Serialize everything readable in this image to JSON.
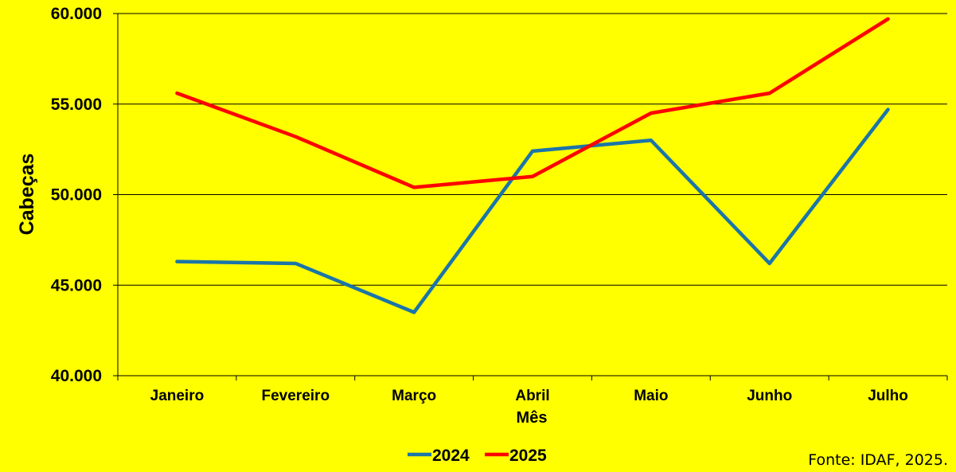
{
  "chart_data": {
    "type": "line",
    "title": "",
    "xlabel": "Mês",
    "ylabel": "Cabeças",
    "categories": [
      "Janeiro",
      "Fevereiro",
      "Março",
      "Abril",
      "Maio",
      "Junho",
      "Julho"
    ],
    "ylim": [
      40000,
      60000
    ],
    "yticks": [
      40000,
      45000,
      50000,
      55000,
      60000
    ],
    "ytick_labels": [
      "40.000",
      "45.000",
      "50.000",
      "55.000",
      "60.000"
    ],
    "grid": true,
    "legend_position": "bottom-center",
    "series": [
      {
        "name": "2024",
        "color": "#1B75A8",
        "values": [
          46300,
          46200,
          43500,
          52400,
          53000,
          46200,
          54700
        ]
      },
      {
        "name": "2025",
        "color": "#FF0000",
        "values": [
          55600,
          53200,
          50400,
          51000,
          54500,
          55600,
          59700
        ]
      }
    ]
  },
  "source": "Fonte: IDAF, 2025.",
  "colors": {
    "background": "#FFFF00"
  }
}
